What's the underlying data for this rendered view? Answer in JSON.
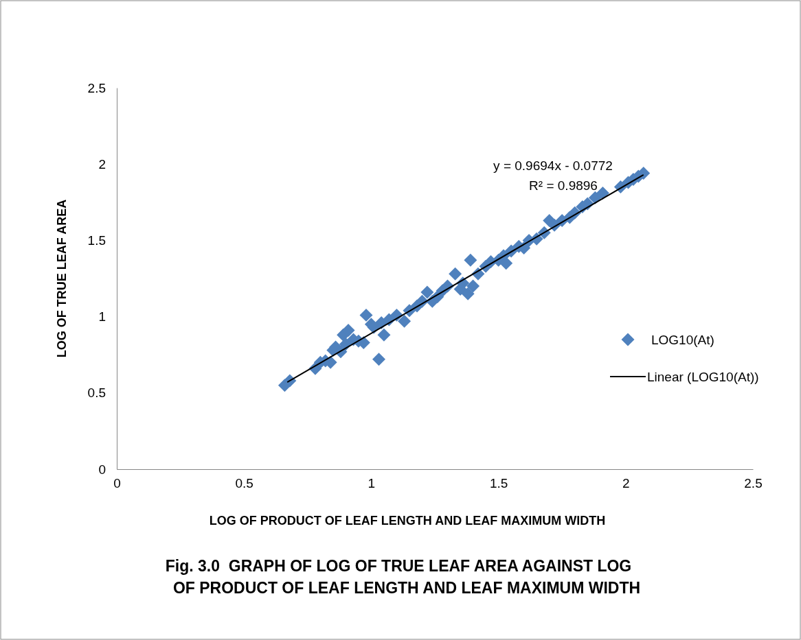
{
  "chart_data": {
    "type": "scatter",
    "title": "Fig. 3.0  GRAPH OF LOG OF TRUE LEAF AREA AGAINST LOG OF PRODUCT OF LEAF LENGTH AND LEAF MAXIMUM WIDTH",
    "xlabel": "LOG OF PRODUCT OF LEAF LENGTH AND LEAF MAXIMUM WIDTH",
    "ylabel": "LOG OF TRUE LEAF AREA",
    "xlim": [
      0,
      2.5
    ],
    "xticks": [
      0,
      0.5,
      1,
      1.5,
      2,
      2.5
    ],
    "ylim": [
      0,
      2.5
    ],
    "yticks": [
      0,
      0.5,
      1,
      1.5,
      2,
      2.5
    ],
    "grid": false,
    "legend": "right",
    "annotations": [
      "y = 0.9694x - 0.0772",
      "R² = 0.9896"
    ],
    "series": [
      {
        "name": "LOG10(At)",
        "color": "#4f81bd",
        "marker": "diamond",
        "x": [
          0.66,
          0.68,
          0.78,
          0.8,
          0.82,
          0.84,
          0.85,
          0.86,
          0.88,
          0.89,
          0.9,
          0.91,
          0.93,
          0.95,
          0.97,
          0.98,
          1.0,
          1.01,
          1.03,
          1.04,
          1.05,
          1.07,
          1.1,
          1.13,
          1.15,
          1.18,
          1.2,
          1.22,
          1.24,
          1.26,
          1.28,
          1.3,
          1.33,
          1.35,
          1.36,
          1.38,
          1.39,
          1.4,
          1.42,
          1.45,
          1.47,
          1.5,
          1.52,
          1.53,
          1.55,
          1.58,
          1.6,
          1.62,
          1.65,
          1.68,
          1.7,
          1.72,
          1.75,
          1.78,
          1.8,
          1.83,
          1.85,
          1.88,
          1.91,
          1.98,
          2.01,
          2.03,
          2.05,
          2.07
        ],
        "values": [
          0.55,
          0.58,
          0.66,
          0.7,
          0.71,
          0.7,
          0.78,
          0.8,
          0.77,
          0.88,
          0.82,
          0.91,
          0.85,
          0.84,
          0.83,
          1.01,
          0.95,
          0.93,
          0.72,
          0.96,
          0.88,
          0.98,
          1.01,
          0.97,
          1.04,
          1.07,
          1.1,
          1.16,
          1.1,
          1.13,
          1.17,
          1.2,
          1.28,
          1.18,
          1.22,
          1.15,
          1.37,
          1.2,
          1.28,
          1.33,
          1.36,
          1.37,
          1.4,
          1.35,
          1.43,
          1.46,
          1.45,
          1.5,
          1.51,
          1.55,
          1.63,
          1.6,
          1.63,
          1.65,
          1.68,
          1.72,
          1.74,
          1.78,
          1.81,
          1.85,
          1.88,
          1.9,
          1.92,
          1.94
        ]
      },
      {
        "name": "Linear (LOG10(At))",
        "color": "#000000",
        "type": "line",
        "marker": "none",
        "x": [
          0.67,
          2.07
        ],
        "values": [
          0.57,
          1.93
        ]
      }
    ]
  }
}
